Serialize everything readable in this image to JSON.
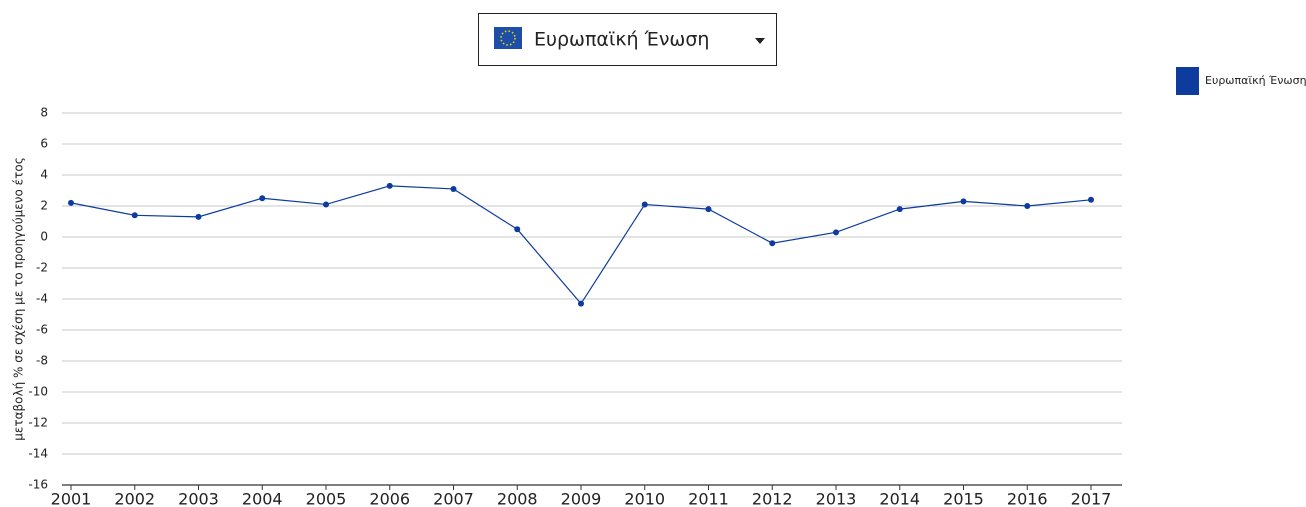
{
  "dropdown": {
    "selected": "Ευρωπαϊκή Ένωση"
  },
  "chart_data": {
    "type": "line",
    "y_label": "μεταβολή % σε σχέση με το προηγούμενο έτος",
    "categories": [
      "2001",
      "2002",
      "2003",
      "2004",
      "2005",
      "2006",
      "2007",
      "2008",
      "2009",
      "2010",
      "2011",
      "2012",
      "2013",
      "2014",
      "2015",
      "2016",
      "2017"
    ],
    "series": [
      {
        "name": "Ευρωπαϊκή Ένωση",
        "color": "#0d3b9e",
        "values": [
          2.2,
          1.4,
          1.3,
          2.5,
          2.1,
          3.3,
          3.1,
          0.5,
          -4.3,
          2.1,
          1.8,
          -0.4,
          0.3,
          1.8,
          2.3,
          2.0,
          2.4
        ]
      }
    ],
    "ylim": [
      -16,
      8
    ],
    "yticks": [
      8,
      6,
      4,
      2,
      0,
      -2,
      -4,
      -6,
      -8,
      -10,
      -12,
      -14,
      -16
    ],
    "grid": true,
    "legend": "top-right"
  }
}
